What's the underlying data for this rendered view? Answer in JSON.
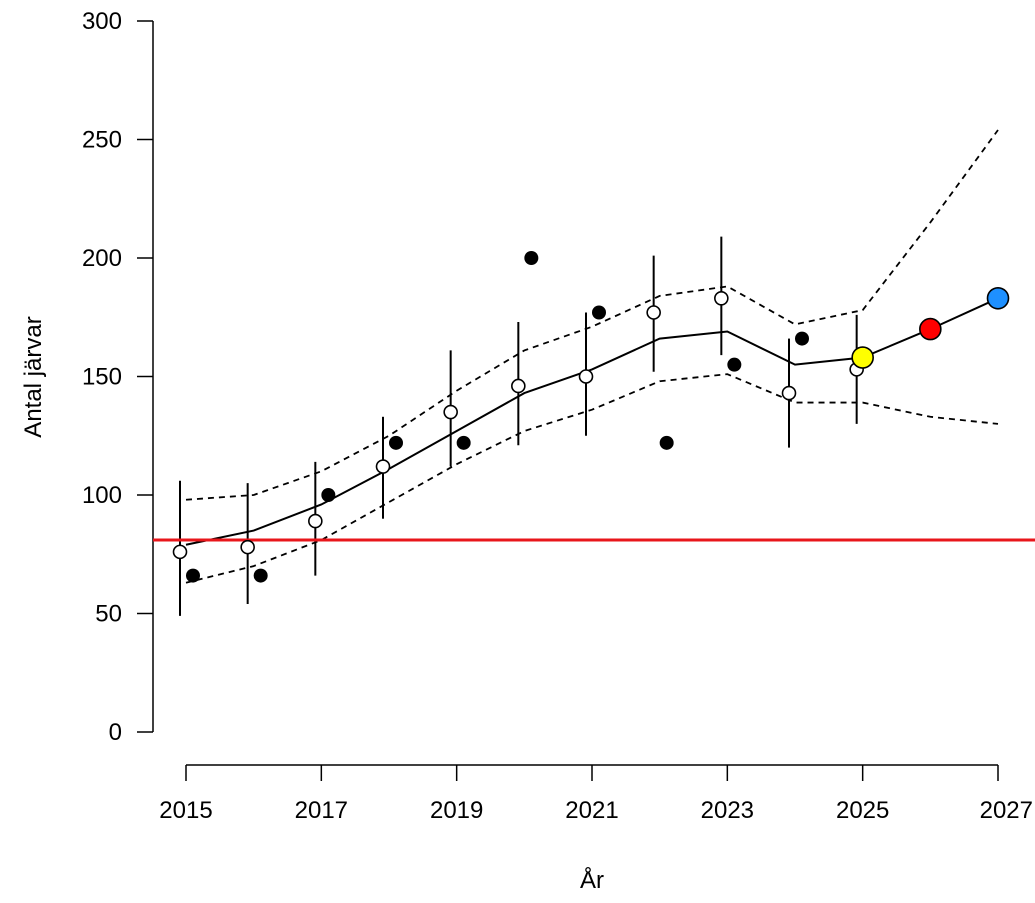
{
  "chart_data": {
    "type": "line",
    "title": "",
    "xlabel": "År",
    "ylabel": "Antal järvar",
    "xlim": [
      2015,
      2027
    ],
    "ylim": [
      0,
      300
    ],
    "x_ticks": [
      2015,
      2017,
      2019,
      2021,
      2023,
      2025,
      2027
    ],
    "y_ticks": [
      0,
      50,
      100,
      150,
      200,
      250,
      300
    ],
    "x_tick_labels": [
      "2015",
      "2017",
      "2019",
      "2021",
      "2023",
      "2025",
      "2027"
    ],
    "y_tick_labels": [
      "0",
      "50",
      "100",
      "150",
      "200",
      "250",
      "300"
    ],
    "grid": false,
    "reference_line": {
      "y": 81,
      "color": "#e8161b"
    },
    "series": [
      {
        "style": "open-circle-with-error-bar",
        "points": [
          {
            "x": 2015,
            "y": 76,
            "lo": 49,
            "hi": 106
          },
          {
            "x": 2016,
            "y": 78,
            "lo": 54,
            "hi": 105
          },
          {
            "x": 2017,
            "y": 89,
            "lo": 66,
            "hi": 114
          },
          {
            "x": 2018,
            "y": 112,
            "lo": 90,
            "hi": 133
          },
          {
            "x": 2019,
            "y": 135,
            "lo": 112,
            "hi": 161
          },
          {
            "x": 2020,
            "y": 146,
            "lo": 121,
            "hi": 173
          },
          {
            "x": 2021,
            "y": 150,
            "lo": 125,
            "hi": 177
          },
          {
            "x": 2022,
            "y": 177,
            "lo": 152,
            "hi": 201
          },
          {
            "x": 2023,
            "y": 183,
            "lo": 159,
            "hi": 209
          },
          {
            "x": 2024,
            "y": 143,
            "lo": 120,
            "hi": 166
          },
          {
            "x": 2025,
            "y": 153,
            "lo": 130,
            "hi": 176
          }
        ]
      },
      {
        "style": "filled-circle",
        "points": [
          {
            "x": 2015,
            "y": 66
          },
          {
            "x": 2016,
            "y": 66
          },
          {
            "x": 2017,
            "y": 100
          },
          {
            "x": 2018,
            "y": 122
          },
          {
            "x": 2019,
            "y": 122
          },
          {
            "x": 2020,
            "y": 200
          },
          {
            "x": 2021,
            "y": 177
          },
          {
            "x": 2022,
            "y": 122
          },
          {
            "x": 2023,
            "y": 155
          },
          {
            "x": 2024,
            "y": 166
          }
        ]
      },
      {
        "style": "solid-line",
        "x": [
          2015,
          2016,
          2017,
          2018,
          2019,
          2020,
          2021,
          2022,
          2023,
          2024,
          2025,
          2026,
          2027
        ],
        "y": [
          79,
          85,
          96,
          111,
          127,
          143,
          153,
          166,
          169,
          155,
          158,
          170,
          183
        ]
      },
      {
        "style": "dashed-line",
        "x": [
          2015,
          2016,
          2017,
          2018,
          2019,
          2020,
          2021,
          2022,
          2023,
          2024,
          2025,
          2026,
          2027
        ],
        "y": [
          98,
          100,
          110,
          125,
          144,
          161,
          171,
          184,
          188,
          172,
          178,
          215,
          254
        ]
      },
      {
        "style": "dashed-line",
        "x": [
          2015,
          2016,
          2017,
          2018,
          2019,
          2020,
          2021,
          2022,
          2023,
          2024,
          2025,
          2026,
          2027
        ],
        "y": [
          63,
          70,
          81,
          97,
          113,
          127,
          136,
          148,
          151,
          139,
          139,
          133,
          130
        ]
      },
      {
        "style": "forecast-points",
        "points": [
          {
            "x": 2025,
            "y": 158,
            "color": "#ffff00"
          },
          {
            "x": 2026,
            "y": 170,
            "color": "#ff0000"
          },
          {
            "x": 2027,
            "y": 183,
            "color": "#1e90ff"
          }
        ]
      }
    ]
  }
}
